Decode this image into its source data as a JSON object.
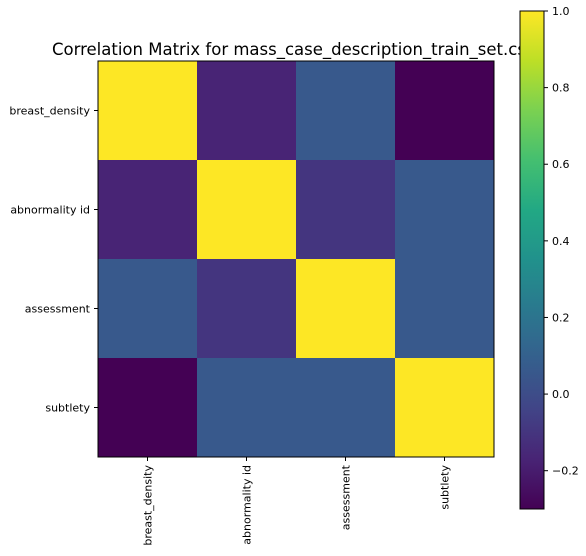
{
  "chart_data": {
    "type": "heatmap",
    "title": "Correlation Matrix for mass_case_description_train_set.csv",
    "xlabel": "",
    "ylabel": "",
    "row_labels": [
      "breast_density",
      "abnormality id",
      "assessment",
      "subtlety"
    ],
    "col_labels": [
      "breast_density",
      "abnormality id",
      "assessment",
      "subtlety"
    ],
    "values": [
      [
        1.0,
        -0.17,
        0.06,
        -0.3
      ],
      [
        -0.17,
        1.0,
        -0.1,
        0.06
      ],
      [
        0.06,
        -0.1,
        1.0,
        0.06
      ],
      [
        -0.3,
        0.06,
        0.06,
        1.0
      ]
    ],
    "colorbar": {
      "colormap": "viridis",
      "vmin": -0.3,
      "vmax": 1.0,
      "ticks": [
        -0.2,
        0.0,
        0.2,
        0.4,
        0.6,
        0.8,
        1.0
      ],
      "tick_labels": [
        "−0.2",
        "0.0",
        "0.2",
        "0.4",
        "0.6",
        "0.8",
        "1.0"
      ]
    },
    "grid": false
  }
}
